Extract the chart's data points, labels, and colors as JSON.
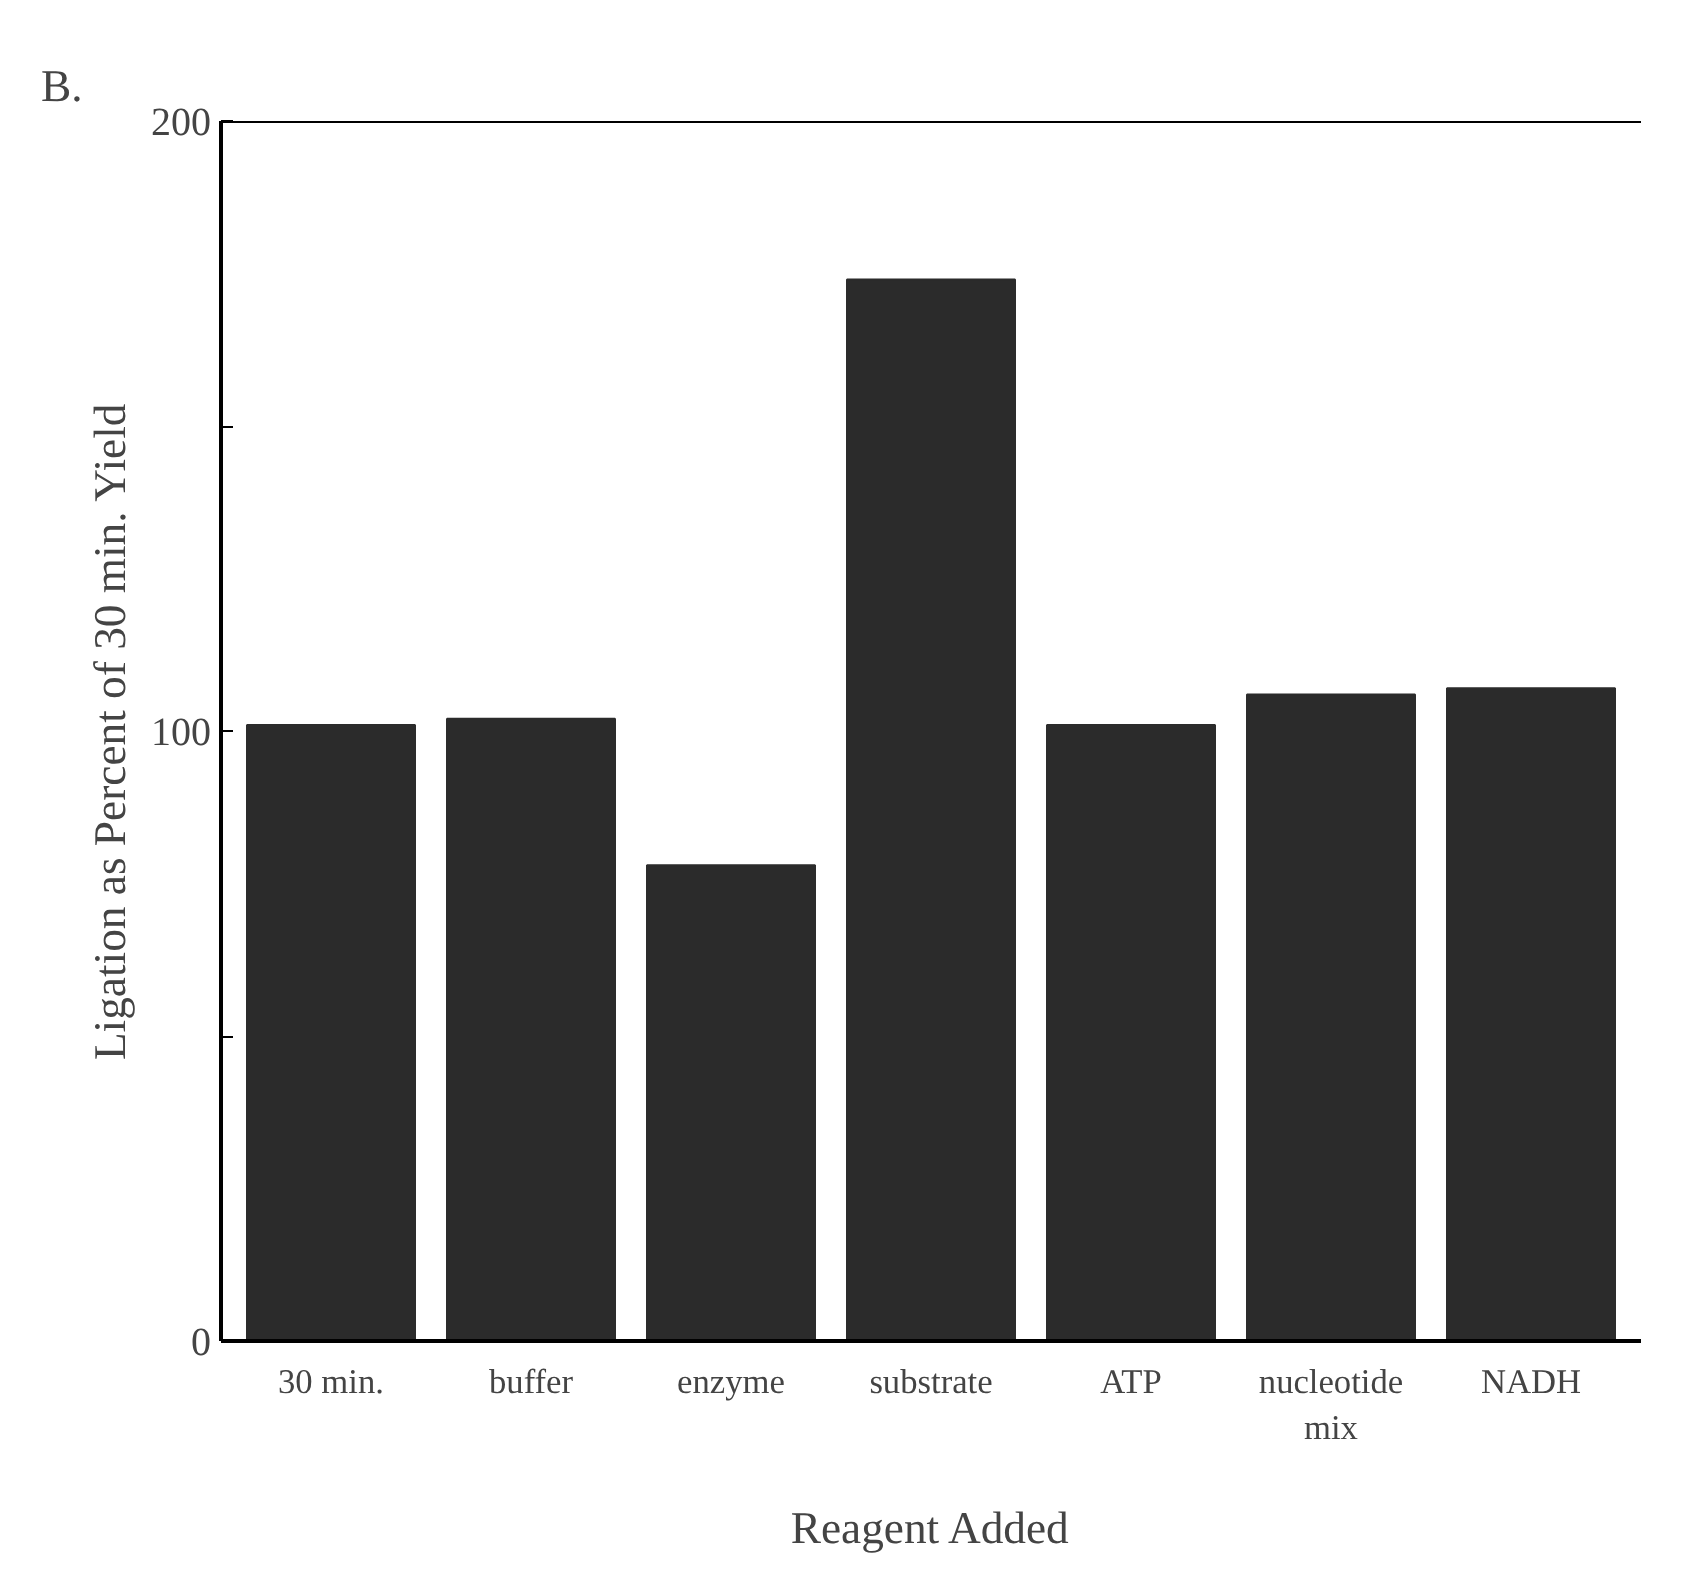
{
  "chart_data": {
    "type": "bar",
    "title": "B.",
    "xlabel": "Reagent Added",
    "ylabel": "Ligation as Percent of 30 min. Yield",
    "categories": [
      "30 min.",
      "buffer",
      "enzyme",
      "substrate",
      "ATP",
      "nucleotide mix",
      "NADH"
    ],
    "values": [
      101,
      102,
      78,
      174,
      101,
      106,
      107
    ],
    "color": "#2b2b2b",
    "ylim": [
      0,
      200
    ],
    "yticks": [
      0,
      {
        "value": 50,
        "label": null
      },
      100,
      {
        "value": 150,
        "label": null
      },
      200
    ],
    "grid": false
  }
}
